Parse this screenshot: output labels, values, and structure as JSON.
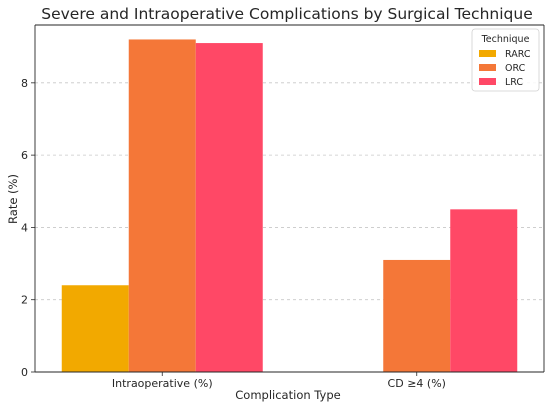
{
  "chart_data": {
    "type": "bar",
    "title": "Severe and Intraoperative Complications by Surgical Technique",
    "xlabel": "Complication Type",
    "ylabel": "Rate (%)",
    "categories": [
      "Intraoperative (%)",
      "CD ≥4 (%)"
    ],
    "series": [
      {
        "name": "RARC",
        "color": "#F2A900",
        "values": [
          2.4,
          null
        ]
      },
      {
        "name": "ORC",
        "color": "#F47738",
        "values": [
          9.2,
          3.1
        ]
      },
      {
        "name": "LRC",
        "color": "#FF4866",
        "values": [
          9.1,
          4.5
        ]
      }
    ],
    "ylim": [
      0,
      9.6
    ],
    "yticks": [
      0,
      2,
      4,
      6,
      8
    ],
    "grid": "y-dashed",
    "legend": {
      "title": "Technique",
      "position": "top-right"
    }
  }
}
